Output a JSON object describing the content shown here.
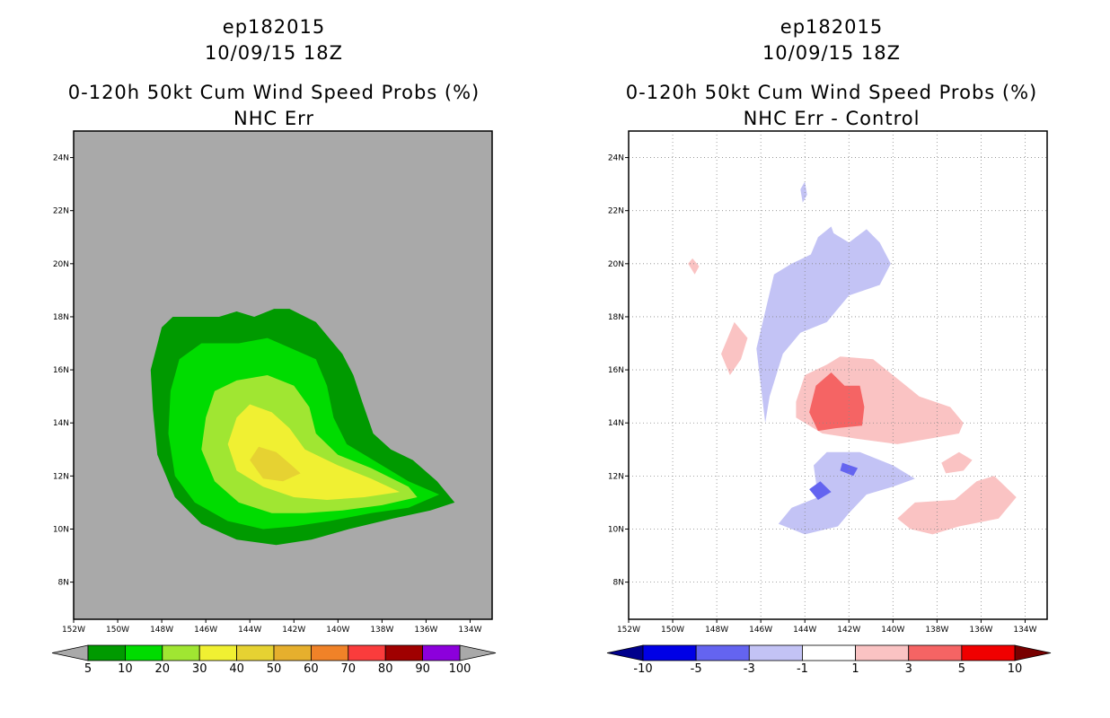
{
  "chart_data": [
    {
      "type": "heatmap",
      "title_lines": [
        "ep182015",
        "10/09/15 18Z",
        "0-120h 50kt Cum Wind Speed Probs (%)",
        "NHC Err"
      ],
      "background_color": "#a9a9a9",
      "grid": false,
      "xlim": [
        -152,
        -133
      ],
      "ylim": [
        6.6,
        25
      ],
      "x_ticks": [
        -152,
        -150,
        -148,
        -146,
        -144,
        -142,
        -140,
        -138,
        -136,
        -134
      ],
      "x_tick_labels": [
        "152W",
        "150W",
        "148W",
        "146W",
        "144W",
        "142W",
        "140W",
        "138W",
        "136W",
        "134W"
      ],
      "y_ticks": [
        8,
        10,
        12,
        14,
        16,
        18,
        20,
        22,
        24
      ],
      "y_tick_labels": [
        "8N",
        "10N",
        "12N",
        "14N",
        "16N",
        "18N",
        "20N",
        "22N",
        "24N"
      ],
      "colorbar": {
        "labels": [
          "5",
          "10",
          "20",
          "30",
          "40",
          "50",
          "60",
          "70",
          "80",
          "90",
          "100"
        ],
        "colors": [
          "#009a00",
          "#00dc00",
          "#a0e632",
          "#f0f032",
          "#e6d232",
          "#e6af2d",
          "#f08228",
          "#fa3c3c",
          "#a00000",
          "#8c00dc"
        ],
        "extend_colors": [
          "#a9a9a9",
          "#a9a9a9"
        ]
      },
      "contours": [
        {
          "level": 5,
          "color": "#009a00",
          "points": [
            [
              -148.5,
              16
            ],
            [
              -148,
              17.6
            ],
            [
              -147.5,
              18
            ],
            [
              -145.4,
              18
            ],
            [
              -144.6,
              18.2
            ],
            [
              -143.8,
              18
            ],
            [
              -142.9,
              18.3
            ],
            [
              -142.2,
              18.3
            ],
            [
              -141,
              17.8
            ],
            [
              -140.4,
              17.2
            ],
            [
              -139.8,
              16.6
            ],
            [
              -139.3,
              15.8
            ],
            [
              -138.9,
              14.8
            ],
            [
              -138.4,
              13.6
            ],
            [
              -137.6,
              13
            ],
            [
              -136.6,
              12.6
            ],
            [
              -135.5,
              11.8
            ],
            [
              -134.7,
              11
            ],
            [
              -135.8,
              10.7
            ],
            [
              -137.5,
              10.4
            ],
            [
              -139.5,
              10
            ],
            [
              -141.2,
              9.6
            ],
            [
              -142.8,
              9.4
            ],
            [
              -144.6,
              9.6
            ],
            [
              -146.2,
              10.2
            ],
            [
              -147.4,
              11.2
            ],
            [
              -148.2,
              12.8
            ],
            [
              -148.4,
              14.5
            ]
          ]
        },
        {
          "level": 10,
          "color": "#00dc00",
          "points": [
            [
              -147.6,
              15.2
            ],
            [
              -147.2,
              16.4
            ],
            [
              -146.2,
              17
            ],
            [
              -144.5,
              17
            ],
            [
              -143.2,
              17.2
            ],
            [
              -142.1,
              16.8
            ],
            [
              -141,
              16.4
            ],
            [
              -140.5,
              15.4
            ],
            [
              -140.2,
              14.2
            ],
            [
              -139.6,
              13.2
            ],
            [
              -138.4,
              12.6
            ],
            [
              -136.8,
              11.8
            ],
            [
              -135.4,
              11.3
            ],
            [
              -136.8,
              10.8
            ],
            [
              -138.5,
              10.6
            ],
            [
              -140.4,
              10.3
            ],
            [
              -142,
              10.1
            ],
            [
              -143.4,
              10
            ],
            [
              -145,
              10.3
            ],
            [
              -146.5,
              11
            ],
            [
              -147.4,
              12
            ],
            [
              -147.7,
              13.6
            ]
          ]
        },
        {
          "level": 20,
          "color": "#a0e632",
          "points": [
            [
              -146,
              14.2
            ],
            [
              -145.6,
              15.2
            ],
            [
              -144.6,
              15.6
            ],
            [
              -143.2,
              15.8
            ],
            [
              -142,
              15.4
            ],
            [
              -141.3,
              14.6
            ],
            [
              -141,
              13.6
            ],
            [
              -140,
              12.8
            ],
            [
              -138.5,
              12.3
            ],
            [
              -136.8,
              11.6
            ],
            [
              -136.4,
              11.2
            ],
            [
              -138,
              10.9
            ],
            [
              -139.8,
              10.7
            ],
            [
              -141.5,
              10.6
            ],
            [
              -143,
              10.6
            ],
            [
              -144.5,
              11
            ],
            [
              -145.6,
              11.8
            ],
            [
              -146.2,
              13
            ]
          ]
        },
        {
          "level": 30,
          "color": "#f0f032",
          "points": [
            [
              -145,
              13.2
            ],
            [
              -144.6,
              14.2
            ],
            [
              -144,
              14.7
            ],
            [
              -143,
              14.4
            ],
            [
              -142.2,
              13.8
            ],
            [
              -141.5,
              13
            ],
            [
              -140,
              12.4
            ],
            [
              -138.5,
              11.9
            ],
            [
              -137.2,
              11.4
            ],
            [
              -138.8,
              11.2
            ],
            [
              -140.5,
              11.1
            ],
            [
              -142,
              11.2
            ],
            [
              -143.4,
              11.6
            ],
            [
              -144.6,
              12.2
            ]
          ]
        },
        {
          "level": 40,
          "color": "#e6d232",
          "points": [
            [
              -144,
              12.6
            ],
            [
              -143.6,
              13.1
            ],
            [
              -142.8,
              12.9
            ],
            [
              -142.1,
              12.4
            ],
            [
              -141.7,
              12.1
            ],
            [
              -142.5,
              11.8
            ],
            [
              -143.4,
              11.9
            ]
          ]
        }
      ]
    },
    {
      "type": "heatmap",
      "title_lines": [
        "ep182015",
        "10/09/15 18Z",
        "0-120h 50kt Cum Wind Speed Probs (%)",
        "NHC Err - Control"
      ],
      "background_color": "#ffffff",
      "grid": true,
      "xlim": [
        -152,
        -133
      ],
      "ylim": [
        6.6,
        25
      ],
      "x_ticks": [
        -152,
        -150,
        -148,
        -146,
        -144,
        -142,
        -140,
        -138,
        -136,
        -134
      ],
      "x_tick_labels": [
        "152W",
        "150W",
        "148W",
        "146W",
        "144W",
        "142W",
        "140W",
        "138W",
        "136W",
        "134W"
      ],
      "y_ticks": [
        8,
        10,
        12,
        14,
        16,
        18,
        20,
        22,
        24
      ],
      "y_tick_labels": [
        "8N",
        "10N",
        "12N",
        "14N",
        "16N",
        "18N",
        "20N",
        "22N",
        "24N"
      ],
      "colorbar": {
        "labels": [
          "-10",
          "-5",
          "-3",
          "-1",
          "1",
          "3",
          "5",
          "10"
        ],
        "colors": [
          "#0000e6",
          "#6464f0",
          "#c3c3f5",
          "#ffffff",
          "#fac3c3",
          "#f56464",
          "#f00000"
        ],
        "extend_colors": [
          "#00008c",
          "#780000"
        ]
      },
      "contours": [
        {
          "level": -3,
          "color": "#c3c3f5",
          "points": [
            [
              -146.2,
              16.8
            ],
            [
              -145.8,
              18.2
            ],
            [
              -145.4,
              19.6
            ],
            [
              -144.6,
              20
            ],
            [
              -143.6,
              20.4
            ],
            [
              -142.8,
              21.2
            ],
            [
              -142,
              20.8
            ],
            [
              -141.2,
              21.3
            ],
            [
              -140.6,
              20.8
            ],
            [
              -140.1,
              20
            ],
            [
              -140.6,
              19.2
            ],
            [
              -142,
              18.8
            ],
            [
              -143,
              17.8
            ],
            [
              -144.2,
              17.4
            ],
            [
              -145,
              16.6
            ],
            [
              -145.6,
              15
            ],
            [
              -145.8,
              14
            ],
            [
              -146,
              15.4
            ]
          ]
        },
        {
          "level": -3,
          "color": "#c3c3f5",
          "points": [
            [
              -143.8,
              20.2
            ],
            [
              -143.4,
              21
            ],
            [
              -142.8,
              21.4
            ],
            [
              -142.5,
              20.7
            ]
          ]
        },
        {
          "level": -3,
          "color": "#c3c3f5",
          "points": [
            [
              -144.2,
              22.8
            ],
            [
              -144,
              23.1
            ],
            [
              -143.9,
              22.6
            ],
            [
              -144.1,
              22.3
            ]
          ]
        },
        {
          "level": -3,
          "color": "#c3c3f5",
          "points": [
            [
              -143.6,
              12.4
            ],
            [
              -143,
              12.9
            ],
            [
              -141.5,
              12.9
            ],
            [
              -140,
              12.4
            ],
            [
              -139,
              11.9
            ],
            [
              -140,
              11.6
            ],
            [
              -141.2,
              11.3
            ],
            [
              -142,
              10.6
            ],
            [
              -142.5,
              10.1
            ],
            [
              -144,
              9.8
            ],
            [
              -145.2,
              10.2
            ],
            [
              -144.6,
              10.8
            ],
            [
              -143.4,
              11.2
            ]
          ]
        },
        {
          "level": -5,
          "color": "#6464f0",
          "points": [
            [
              -143.3,
              11.8
            ],
            [
              -142.8,
              11.4
            ],
            [
              -143.4,
              11.1
            ],
            [
              -143.8,
              11.5
            ]
          ]
        },
        {
          "level": -5,
          "color": "#6464f0",
          "points": [
            [
              -142.3,
              12.5
            ],
            [
              -141.6,
              12.3
            ],
            [
              -141.8,
              12
            ],
            [
              -142.4,
              12.2
            ]
          ]
        },
        {
          "level": 3,
          "color": "#fac3c3",
          "points": [
            [
              -144.4,
              14.8
            ],
            [
              -144,
              15.8
            ],
            [
              -143,
              16.2
            ],
            [
              -142.4,
              16.5
            ],
            [
              -140.9,
              16.4
            ],
            [
              -140,
              15.8
            ],
            [
              -138.8,
              15
            ],
            [
              -137.4,
              14.6
            ],
            [
              -136.8,
              14
            ],
            [
              -137,
              13.6
            ],
            [
              -138.4,
              13.4
            ],
            [
              -139.8,
              13.2
            ],
            [
              -141.6,
              13.4
            ],
            [
              -143.2,
              13.6
            ],
            [
              -144.4,
              14.2
            ]
          ]
        },
        {
          "level": 5,
          "color": "#f56464",
          "points": [
            [
              -143.8,
              14.4
            ],
            [
              -143.5,
              15.4
            ],
            [
              -142.8,
              15.9
            ],
            [
              -142.2,
              15.4
            ],
            [
              -141.5,
              15.4
            ],
            [
              -141.3,
              14.6
            ],
            [
              -141.4,
              13.9
            ],
            [
              -142.6,
              13.8
            ],
            [
              -143.4,
              13.7
            ]
          ]
        },
        {
          "level": 3,
          "color": "#fac3c3",
          "points": [
            [
              -147.8,
              16.6
            ],
            [
              -147.2,
              17.8
            ],
            [
              -146.6,
              17.2
            ],
            [
              -146.9,
              16.4
            ],
            [
              -147.4,
              15.8
            ],
            [
              -148,
              17
            ]
          ]
        },
        {
          "level": 3,
          "color": "#fac3c3",
          "points": [
            [
              -139.8,
              10.4
            ],
            [
              -139,
              11
            ],
            [
              -137.2,
              11.1
            ],
            [
              -136.2,
              11.8
            ],
            [
              -135.4,
              12
            ],
            [
              -134.4,
              11.2
            ],
            [
              -135.2,
              10.4
            ],
            [
              -137,
              10.1
            ],
            [
              -138.2,
              9.8
            ],
            [
              -139.2,
              10
            ]
          ]
        },
        {
          "level": 3,
          "color": "#fac3c3",
          "points": [
            [
              -137.8,
              12.5
            ],
            [
              -137,
              12.9
            ],
            [
              -136.4,
              12.6
            ],
            [
              -136.8,
              12.2
            ],
            [
              -137.6,
              12.1
            ]
          ]
        },
        {
          "level": 3,
          "color": "#fac3c3",
          "points": [
            [
              -149.3,
              20
            ],
            [
              -149,
              19.6
            ],
            [
              -148.8,
              19.9
            ],
            [
              -149.1,
              20.2
            ]
          ]
        }
      ]
    }
  ]
}
